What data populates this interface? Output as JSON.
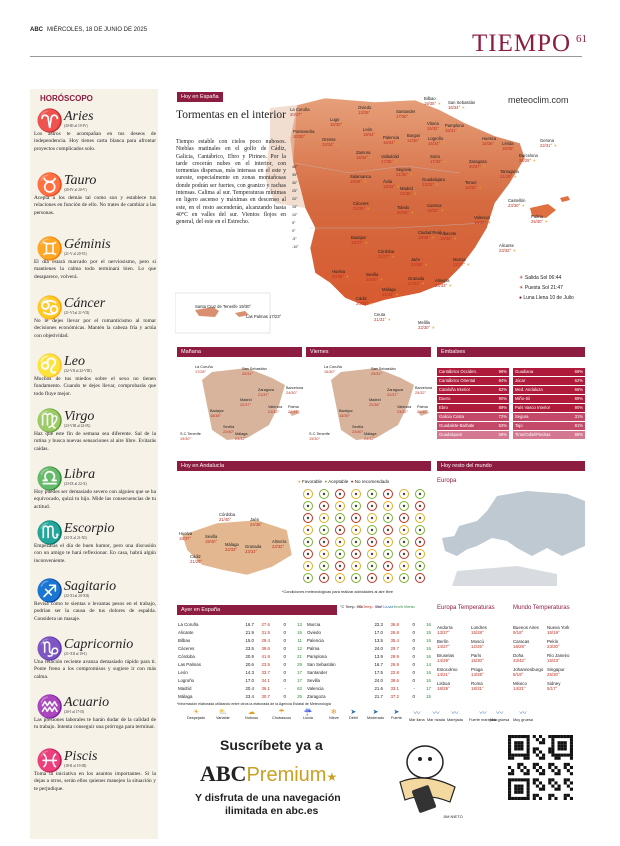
{
  "header": {
    "masthead": "ABC",
    "date": "MIÉRCOLES, 18 DE JUNIO DE 2025",
    "section": "TIEMPO",
    "page": "61"
  },
  "horoscope": {
    "title": "HORÓSCOPO",
    "signs": [
      {
        "name": "Aries",
        "dates": "(20-III al 19-IV)",
        "text": "Los astros te acompañan en tus deseos de independencia. Hoy tienes carta blanca para afrontar proyectos complicados solo.",
        "glyph": "♈"
      },
      {
        "name": "Tauro",
        "dates": "(20-IV al 20-V)",
        "text": "Acepta a los demás tal como son y establece tus relaciones en función de ello. No trates de cambiar a las personas.",
        "glyph": "♉"
      },
      {
        "name": "Géminis",
        "dates": "(21-V al 20-VI)",
        "text": "El día estará marcado por el nerviosismo, pero si mantienes la calma todo terminará bien. Lo que desaparece, volverá.",
        "glyph": "♊"
      },
      {
        "name": "Cáncer",
        "dates": "(21-VI al 21-VII)",
        "text": "No te dejes llevar por el romanticismo al tomar decisiones económicas. Mantén la cabeza fría y actúa con objetividad.",
        "glyph": "♋"
      },
      {
        "name": "Leo",
        "dates": "(22-VII al 22-VIII)",
        "text": "Muchos de tus miedos sobre el sexo no tienen fundamento. Cuando te dejes llevar, comprobarás que todo fluye mejor.",
        "glyph": "♌"
      },
      {
        "name": "Virgo",
        "dates": "(23-VIII al 22-IX)",
        "text": "Haz que este fin de semana sea diferente. Sal de la rutina y busca nuevas sensaciones al aire libre. Evitarás caídas.",
        "glyph": "♍"
      },
      {
        "name": "Libra",
        "dates": "(23-IX al 22-X)",
        "text": "Hoy puedes ser demasiado severo con alguien que se ha equivocado, quizá tu hijo. Mide las consecuencias de tu actitud.",
        "glyph": "♎"
      },
      {
        "name": "Escorpio",
        "dates": "(23-X al 21-XI)",
        "text": "Empezarás el día de buen humor, pero una discusión con un amigo te hará reflexionar. En casa, habrá algún inconveniente.",
        "glyph": "♏"
      },
      {
        "name": "Sagitario",
        "dates": "(22-XI al 20-XII)",
        "text": "Revisa cómo te sientas o levantas pesos en el trabajo, podrían ser la causa de tus dolores de espalda. Considera un masaje.",
        "glyph": "♐"
      },
      {
        "name": "Capricornio",
        "dates": "(21-XII al 19-I)",
        "text": "Una relación reciente avanza demasiado rápido para ti. Ponte freno a los compromisos y sugiere ir con más calma.",
        "glyph": "♑"
      },
      {
        "name": "Acuario",
        "dates": "(20-I al 17-II)",
        "text": "Las presiones laborales te harán dudar de la calidad de tu trabajo. Intenta conseguir una prórroga para terminar.",
        "glyph": "♒"
      },
      {
        "name": "Piscis",
        "dates": "(18-II al 19-III)",
        "text": "Toma la iniciativa en los asuntos importantes. Si la dejas a otros, serán ellos quienes manejen la situación y te perjudique.",
        "glyph": "♓"
      }
    ]
  },
  "spain": {
    "label": "Hoy en España",
    "headline": "Tormentas en el interior",
    "body": "Tiempo estable con cielos poco nubosos. Nieblas matinales en el golfo de Cádiz, Galicia, Cantábrico, Ebro y Pirineo. Por la tarde crecerán nubes en el interior, con tormentas dispersas, más intensas en el este y sureste, especialmente en zonas montañosas donde podrán ser fuertes, con granizo y rachas intensas. Calima al sur. Temperaturas mínimas en ligero ascenso y máximas en descenso al este, en el resto ascenderán, alcanzando hasta 40°C en valles del sur. Vientos flojos en general, del este en el Estrecho.",
    "web": "meteoclim.com",
    "scale": [
      "40°",
      "35°",
      "30°",
      "25°",
      "20°",
      "15°",
      "10°",
      "5°",
      "0°",
      "-5°",
      "-10°"
    ],
    "canarias": "Santa Cruz de Tenerife 19/30°",
    "laspalmas": "Las Palmas 17/23°",
    "cities": [
      {
        "n": "La Coruña",
        "t": "20/27°"
      },
      {
        "n": "Oviedo",
        "t": "13/29°"
      },
      {
        "n": "Santander",
        "t": "17/30°"
      },
      {
        "n": "Bilbao",
        "t": "19/35°"
      },
      {
        "n": "San Sebastián",
        "t": "16/34°"
      },
      {
        "n": "Lugo",
        "t": "16/30°"
      },
      {
        "n": "León",
        "t": "18/34°"
      },
      {
        "n": "Burgos",
        "t": "14/30°"
      },
      {
        "n": "Vitoria",
        "t": "15/32°"
      },
      {
        "n": "Pamplona",
        "t": "15/31°"
      },
      {
        "n": "Pontevedra",
        "t": "20/30°"
      },
      {
        "n": "Orense",
        "t": "22/34°"
      },
      {
        "n": "Palencia",
        "t": "16/34°"
      },
      {
        "n": "Logroño",
        "t": "16/34°"
      },
      {
        "n": "Huesca",
        "t": "18/35°"
      },
      {
        "n": "Lérida",
        "t": "18/35°"
      },
      {
        "n": "Gerona",
        "t": "22/31°"
      },
      {
        "n": "Zamora",
        "t": "16/34°"
      },
      {
        "n": "Valladolid",
        "t": "17/35°"
      },
      {
        "n": "Soria",
        "t": "17/32°"
      },
      {
        "n": "Zaragoza",
        "t": "20/37°"
      },
      {
        "n": "Barcelona",
        "t": "24/29°"
      },
      {
        "n": "Segovia",
        "t": "21/30°"
      },
      {
        "n": "Tarragona",
        "t": "21/29°"
      },
      {
        "n": "Salamanca",
        "t": "19/34°"
      },
      {
        "n": "Ávila",
        "t": "18/32°"
      },
      {
        "n": "Guadalajara",
        "t": "23/33°"
      },
      {
        "n": "Teruel",
        "t": "16/32°"
      },
      {
        "n": "Madrid",
        "t": "22/35°"
      },
      {
        "n": "Cuenca",
        "t": "18/32°"
      },
      {
        "n": "Castellón",
        "t": "23/30°"
      },
      {
        "n": "Palma",
        "t": "25/30°"
      },
      {
        "n": "Cáceres",
        "t": "22/35°"
      },
      {
        "n": "Toledo",
        "t": "20/36°"
      },
      {
        "n": "Valencia",
        "t": "19/33°"
      },
      {
        "n": "Badajoz",
        "t": "18/37°"
      },
      {
        "n": "Ciudad Real",
        "t": "19/36°"
      },
      {
        "n": "Albacete",
        "t": "19/33°"
      },
      {
        "n": "Alicante",
        "t": "23/32°"
      },
      {
        "n": "Córdoba",
        "t": "21/37°"
      },
      {
        "n": "Jaén",
        "t": "24/36°"
      },
      {
        "n": "Murcia",
        "t": "22/37°"
      },
      {
        "n": "Huelva",
        "t": "20/36°"
      },
      {
        "n": "Sevilla",
        "t": "20/40°"
      },
      {
        "n": "Granada",
        "t": "23/33°"
      },
      {
        "n": "Almería",
        "t": "23/33°"
      },
      {
        "n": "Cádiz",
        "t": "20/28°"
      },
      {
        "n": "Málaga",
        "t": "21/34°"
      },
      {
        "n": "Ceuta",
        "t": "21/31°"
      },
      {
        "n": "Melilla",
        "t": "22/30°"
      }
    ],
    "sun": {
      "rise": "Salida Sol 06:44",
      "set": "Puesta Sol 21:47",
      "moon": "Luna Llena 10 de Julio"
    }
  },
  "forecast": {
    "manana": "Mañana",
    "viernes": "Viernes",
    "m_cities": [
      {
        "n": "La Coruña",
        "t": "17/28°"
      },
      {
        "n": "San Sebastián",
        "t": "20/31°"
      },
      {
        "n": "Zaragoza",
        "t": "21/37°"
      },
      {
        "n": "Barcelona",
        "t": "24/30°"
      },
      {
        "n": "Madrid",
        "t": "22/37°"
      },
      {
        "n": "Valencia",
        "t": "21/32°"
      },
      {
        "n": "Palma",
        "t": "22/31°"
      },
      {
        "n": "Badajoz",
        "t": "18/38°"
      },
      {
        "n": "Sevilla",
        "t": "22/40°"
      },
      {
        "n": "Málaga",
        "t": "24/32°"
      },
      {
        "n": "S.C.Tenerife",
        "t": "19/30°"
      }
    ],
    "v_cities": [
      {
        "n": "La Coruña",
        "t": "16/30°"
      },
      {
        "n": "San Sebastián",
        "t": "20/32°"
      },
      {
        "n": "Zaragoza",
        "t": "22/37°"
      },
      {
        "n": "Barcelona",
        "t": "25/32°"
      },
      {
        "n": "Madrid",
        "t": "22/38°"
      },
      {
        "n": "Valencia",
        "t": "23/32°"
      },
      {
        "n": "Palma",
        "t": "20/32°"
      },
      {
        "n": "Badajoz",
        "t": "18/39°"
      },
      {
        "n": "Sevilla",
        "t": "23/40°"
      },
      {
        "n": "Málaga",
        "t": "24/32°"
      },
      {
        "n": "S.C.Tenerife",
        "t": "19/30°"
      }
    ]
  },
  "reservoirs": {
    "label": "Embalses",
    "left": [
      {
        "n": "Cantábrico Occiden.",
        "p": "96%",
        "c": "#b01a3a"
      },
      {
        "n": "Cantábrico Oriental",
        "p": "84%",
        "c": "#b01a3a"
      },
      {
        "n": "Cataluña Interior",
        "p": "82%",
        "c": "#b01a3a"
      },
      {
        "n": "Duero",
        "p": "90%",
        "c": "#b01a3a"
      },
      {
        "n": "Ebro",
        "p": "89%",
        "c": "#b01a3a"
      },
      {
        "n": "Galicia Costa",
        "p": "72%",
        "c": "#c44868"
      },
      {
        "n": "Guadalete-Barbate",
        "p": "53%",
        "c": "#c44868"
      },
      {
        "n": "Guadalquivir",
        "p": "58%",
        "c": "#d37890"
      }
    ],
    "right": [
      {
        "n": "Guadiana",
        "p": "69%",
        "c": "#b01a3a"
      },
      {
        "n": "Júcar",
        "p": "62%",
        "c": "#b01a3a"
      },
      {
        "n": "Med. Andaluza",
        "p": "66%",
        "c": "#b01a3a"
      },
      {
        "n": "Miño-Sil",
        "p": "89%",
        "c": "#b01a3a"
      },
      {
        "n": "País Vasco Interior",
        "p": "90%",
        "c": "#b01a3a"
      },
      {
        "n": "Segura",
        "p": "31%",
        "c": "#c44868"
      },
      {
        "n": "Tajo",
        "p": "81%",
        "c": "#c44868"
      },
      {
        "n": "Tinto/Odiel/Piedras",
        "p": "88%",
        "c": "#d37890"
      }
    ]
  },
  "andalucia": {
    "label": "Hoy en Andalucía",
    "legend": [
      "Favorable",
      "Aceptable",
      "No recomendado"
    ],
    "cities": [
      {
        "n": "Huelva",
        "t": "18/37°"
      },
      {
        "n": "Sevilla",
        "t": "19/40°"
      },
      {
        "n": "Córdoba",
        "t": "21/40°"
      },
      {
        "n": "Jaén",
        "t": "24/36°"
      },
      {
        "n": "Cádiz",
        "t": "21/28°"
      },
      {
        "n": "Málaga",
        "t": "22/33°"
      },
      {
        "n": "Granada",
        "t": "23/33°"
      },
      {
        "n": "Almería",
        "t": "23/32°"
      }
    ],
    "note": "*Condiciones meteorológicas para realizar actividades al aire libre"
  },
  "world": {
    "label": "Hoy resto del mundo",
    "europe": "Europa"
  },
  "yesterday": {
    "label": "Ayer en España",
    "headers": [
      "°C Temp. Mín.",
      "°C Temp. Máx.",
      "l/m² Lluvia",
      "Km/h Viento"
    ],
    "left": [
      [
        "La Coruña",
        "16.7",
        "27.6",
        "0",
        "13"
      ],
      [
        "Alicante",
        "21.9",
        "31.5",
        "0",
        "16"
      ],
      [
        "Bilbao",
        "15.0",
        "29.4",
        "0",
        "11"
      ],
      [
        "Cáceres",
        "23.5",
        "39.6",
        "0",
        "12"
      ],
      [
        "Córdoba",
        "20.9",
        "41.9",
        "0",
        "21"
      ],
      [
        "Las Palmas",
        "20.6",
        "23.5",
        "0",
        "29"
      ],
      [
        "León",
        "14.3",
        "33.7",
        "0",
        "17"
      ],
      [
        "Logroño",
        "17.0",
        "34.1",
        "0",
        "17"
      ],
      [
        "Madrid",
        "20.4",
        "36.1",
        "-",
        "63"
      ],
      [
        "Málaga",
        "23.4",
        "30.7",
        "0",
        "25"
      ]
    ],
    "right": [
      [
        "Murcia",
        "22.3",
        "36.8",
        "0",
        "16"
      ],
      [
        "Oviedo",
        "17.0",
        "26.8",
        "0",
        "15"
      ],
      [
        "Palencia",
        "13.5",
        "35.4",
        "0",
        "16"
      ],
      [
        "Palma",
        "24.0",
        "29.7",
        "0",
        "16"
      ],
      [
        "Pamplona",
        "13.9",
        "29.9",
        "0",
        "16"
      ],
      [
        "San Sebastián",
        "16.7",
        "26.9",
        "0",
        "14"
      ],
      [
        "Santander",
        "17.5",
        "22.8",
        "0",
        "16"
      ],
      [
        "Sevilla",
        "24.0",
        "39.6",
        "0",
        "16"
      ],
      [
        "Valencia",
        "21.6",
        "33.1",
        "-",
        "17"
      ],
      [
        "Zaragoza",
        "21.7",
        "37.2",
        "0",
        "15"
      ]
    ],
    "footnote": "*Información elaborada utilizando entre otros la elaborada de la Agencia Estatal de Meteorología"
  },
  "temps_eu": {
    "label": "Europa Temperaturas",
    "items": [
      [
        "Andorra",
        "13/27°"
      ],
      [
        "Londres",
        "15/28°"
      ],
      [
        "Berlín",
        "14/27°"
      ],
      [
        "Moscú",
        "12/26°"
      ],
      [
        "Bruselas",
        "14/29°"
      ],
      [
        "París",
        "15/30°"
      ],
      [
        "Estocolmo",
        "14/21°"
      ],
      [
        "Praga",
        "13/28°"
      ],
      [
        "Lisboa",
        "18/29°"
      ],
      [
        "Roma",
        "18/31°"
      ]
    ]
  },
  "temps_world": {
    "label": "Mundo Temperaturas",
    "items": [
      [
        "Buenos Aires",
        "9/18°"
      ],
      [
        "Nueva York",
        "16/19°"
      ],
      [
        "Caracas",
        "18/28°"
      ],
      [
        "Pekín",
        "23/30°"
      ],
      [
        "Doha",
        "33/42°"
      ],
      [
        "Río Janeiro",
        "15/23°"
      ],
      [
        "Johannesburgo",
        "8/19°"
      ],
      [
        "Singapur",
        "25/30°"
      ],
      [
        "México",
        "14/21°"
      ],
      [
        "Sidney",
        "5/17°"
      ]
    ]
  },
  "legend_icons": [
    "Despejado",
    "Variable",
    "Nuboso",
    "Chubascos",
    "Lluvia",
    "Nieve",
    "Débil",
    "Moderado",
    "Fuerte",
    "Mar llana",
    "Mar rizada",
    "Marejada",
    "Fuerte marejada",
    "Mar gruesa",
    "Muy gruesa"
  ],
  "ad": {
    "line1": "Suscríbete ya a",
    "brand": "ABC",
    "brand2": "Premium",
    "line2": "Y disfruta de una navegación",
    "line3": "ilimitada en abc.es",
    "author": "JIM NIETO"
  },
  "watermark": "ABC"
}
